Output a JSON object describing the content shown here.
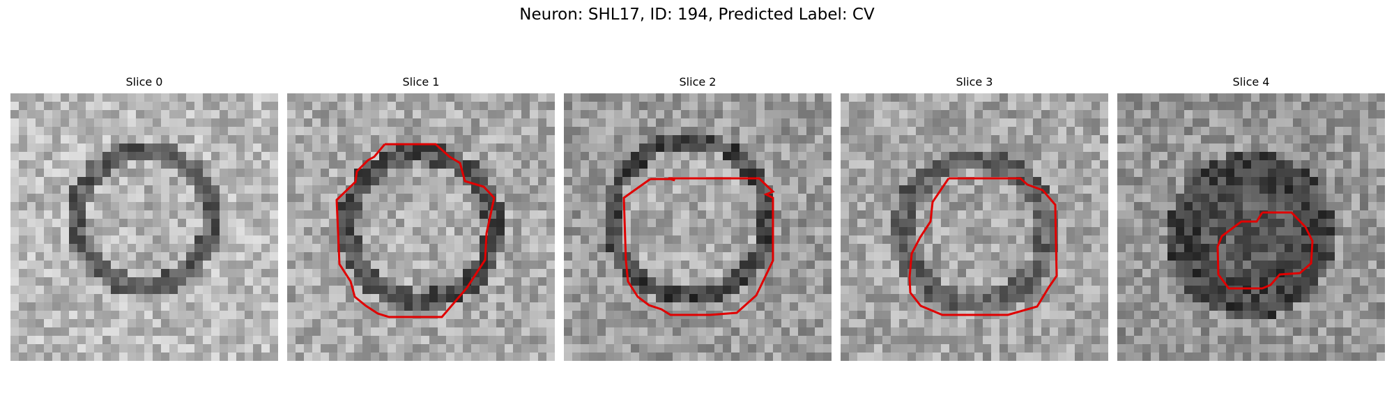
{
  "figure": {
    "title": "Neuron: SHL17, ID: 194, Predicted Label: CV",
    "roi_color": "#e00000"
  },
  "slices": [
    {
      "label": "Slice 0",
      "roi": null
    },
    {
      "label": "Slice 1",
      "roi": "present"
    },
    {
      "label": "Slice 2",
      "roi": "present"
    },
    {
      "label": "Slice 3",
      "roi": "present"
    },
    {
      "label": "Slice 4",
      "roi": "present"
    }
  ]
}
